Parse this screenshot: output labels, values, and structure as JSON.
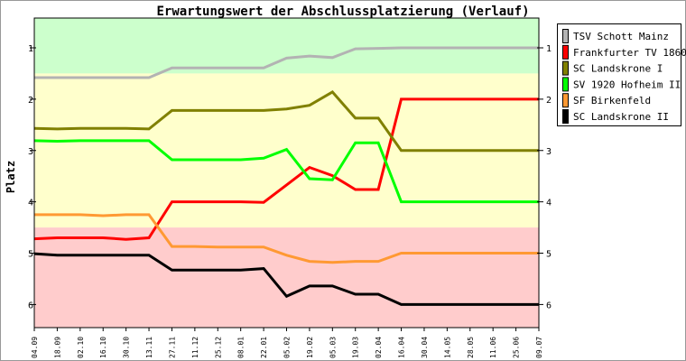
{
  "chart_data": {
    "type": "line",
    "title": "Erwartungswert der Abschlussplatzierung (Verlauf)",
    "xlabel": "",
    "ylabel": "Platz",
    "ylim": [
      0.42,
      6.45
    ],
    "y_inverted": true,
    "y_ticks": [
      1,
      2,
      3,
      4,
      5,
      6
    ],
    "grid": false,
    "legend_position": "right",
    "bands": [
      {
        "from": 0.42,
        "to": 1.5,
        "color": "#ccffcc"
      },
      {
        "from": 1.5,
        "to": 4.5,
        "color": "#ffffcc"
      },
      {
        "from": 4.5,
        "to": 6.45,
        "color": "#ffcccc"
      }
    ],
    "categories": [
      "04.09",
      "18.09",
      "02.10",
      "16.10",
      "30.10",
      "13.11",
      "27.11",
      "11.12",
      "25.12",
      "08.01",
      "22.01",
      "05.02",
      "19.02",
      "05.03",
      "19.03",
      "02.04",
      "16.04",
      "30.04",
      "14.05",
      "28.05",
      "11.06",
      "25.06",
      "09.07"
    ],
    "series": [
      {
        "name": "TSV Schott Mainz",
        "color": "#b3b3b3",
        "values": [
          1.58,
          1.58,
          1.58,
          1.58,
          1.58,
          1.58,
          1.39,
          1.39,
          1.39,
          1.39,
          1.39,
          1.2,
          1.16,
          1.19,
          1.02,
          1.01,
          1.0,
          1.0,
          1.0,
          1.0,
          1.0,
          1.0,
          1.0
        ]
      },
      {
        "name": "Frankfurter TV 1860",
        "color": "#ff0000",
        "values": [
          4.72,
          4.7,
          4.7,
          4.7,
          4.73,
          4.7,
          4.0,
          4.0,
          4.0,
          4.0,
          4.01,
          3.67,
          3.33,
          3.49,
          3.76,
          3.76,
          2.0,
          2.0,
          2.0,
          2.0,
          2.0,
          2.0,
          2.0
        ]
      },
      {
        "name": "SC Landskrone I",
        "color": "#808000",
        "values": [
          2.57,
          2.58,
          2.57,
          2.57,
          2.57,
          2.58,
          2.22,
          2.22,
          2.22,
          2.22,
          2.22,
          2.19,
          2.12,
          1.86,
          2.37,
          2.37,
          3.0,
          3.0,
          3.0,
          3.0,
          3.0,
          3.0,
          3.0
        ]
      },
      {
        "name": "SV 1920 Hofheim II",
        "color": "#00ff00",
        "values": [
          2.81,
          2.82,
          2.81,
          2.81,
          2.81,
          2.81,
          3.18,
          3.18,
          3.18,
          3.18,
          3.15,
          2.98,
          3.55,
          3.57,
          2.85,
          2.85,
          4.0,
          4.0,
          4.0,
          4.0,
          4.0,
          4.0,
          4.0
        ]
      },
      {
        "name": "SF Birkenfeld",
        "color": "#ff9933",
        "values": [
          4.25,
          4.25,
          4.25,
          4.27,
          4.25,
          4.25,
          4.87,
          4.87,
          4.88,
          4.88,
          4.88,
          5.04,
          5.16,
          5.18,
          5.16,
          5.16,
          5.0,
          5.0,
          5.0,
          5.0,
          5.0,
          5.0,
          5.0
        ]
      },
      {
        "name": "SC Landskrone II",
        "color": "#000000",
        "values": [
          5.01,
          5.04,
          5.04,
          5.04,
          5.04,
          5.04,
          5.33,
          5.33,
          5.33,
          5.33,
          5.3,
          5.84,
          5.64,
          5.64,
          5.8,
          5.8,
          6.0,
          6.0,
          6.0,
          6.0,
          6.0,
          6.0,
          6.0
        ]
      }
    ]
  }
}
